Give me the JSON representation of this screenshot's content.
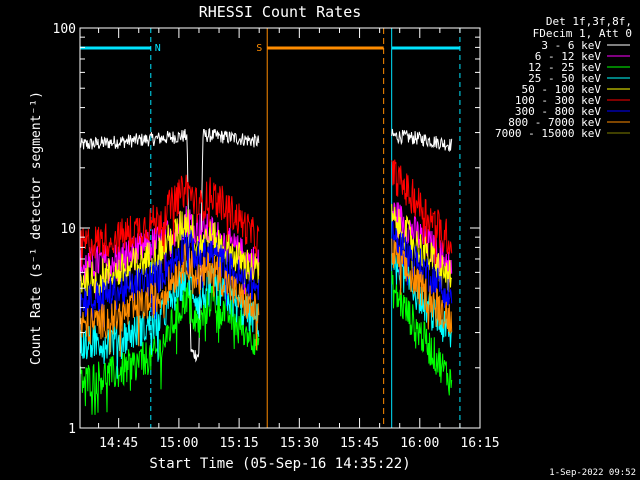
{
  "chart_data": {
    "type": "line",
    "title": "RHESSI Count Rates",
    "xlabel": "Start Time (05-Sep-16 14:35:22)",
    "ylabel": "Count Rate (s⁻¹ detector segment⁻¹)",
    "yscale": "log",
    "ylim": [
      1,
      100
    ],
    "y_ticks": [
      "1",
      "10",
      "100"
    ],
    "x_ticks": [
      "14:45",
      "15:00",
      "15:15",
      "15:30",
      "15:45",
      "16:00",
      "16:15"
    ],
    "xlim": [
      "14:35:22",
      "16:15"
    ],
    "legend_header": [
      "Det 1f,3f,8f,",
      "FDecim 1, Att 0"
    ],
    "legend_placement": "top-right, outside plot",
    "footer": "1-Sep-2022 09:52",
    "grid": false,
    "series": [
      {
        "name": "3 - 6 keV",
        "color": "#ffffff",
        "segments": [
          {
            "t": [
              "14:35:22",
              "14:45",
              "14:55",
              "15:02",
              "15:03",
              "15:05",
              "15:06",
              "15:08",
              "15:15",
              "15:20"
            ],
            "v": [
              26,
              27,
              28,
              29,
              2.4,
              2.3,
              29,
              29,
              28,
              27
            ]
          },
          {
            "t": [
              "15:53",
              "16:00",
              "16:08"
            ],
            "v": [
              29,
              28,
              26
            ]
          }
        ]
      },
      {
        "name": "6 - 12 keV",
        "color": "#ff00ff",
        "segments": [
          {
            "t": [
              "14:35:22",
              "14:45",
              "14:55",
              "15:02",
              "15:05",
              "15:08",
              "15:15",
              "15:20"
            ],
            "v": [
              6.5,
              7,
              8.5,
              11,
              10,
              9.5,
              7.5,
              6.5
            ]
          },
          {
            "t": [
              "15:53",
              "16:00",
              "16:08"
            ],
            "v": [
              12,
              9,
              6.5
            ]
          }
        ]
      },
      {
        "name": "12 - 25 keV",
        "color": "#00ff00",
        "segments": [
          {
            "t": [
              "14:35:22",
              "14:45",
              "14:55",
              "15:02",
              "15:05",
              "15:08",
              "15:15",
              "15:20"
            ],
            "v": [
              1.7,
              1.9,
              2.4,
              4.6,
              3.2,
              4.5,
              3.3,
              2.7
            ]
          },
          {
            "t": [
              "15:53",
              "16:00",
              "16:08"
            ],
            "v": [
              5,
              3,
              1.7
            ]
          }
        ]
      },
      {
        "name": "25 - 50 keV",
        "color": "#00ffff",
        "segments": [
          {
            "t": [
              "14:35:22",
              "14:45",
              "14:55",
              "15:02",
              "15:05",
              "15:08",
              "15:15",
              "15:20"
            ],
            "v": [
              2.6,
              2.8,
              3.4,
              5.8,
              4.2,
              5.3,
              4,
              3.4
            ]
          },
          {
            "t": [
              "15:53",
              "16:00",
              "16:08"
            ],
            "v": [
              7,
              4.5,
              2.8
            ]
          }
        ]
      },
      {
        "name": "50 - 100 keV",
        "color": "#ffff00",
        "segments": [
          {
            "t": [
              "14:35:22",
              "14:45",
              "14:55",
              "15:02",
              "15:05",
              "15:08",
              "15:15",
              "15:20"
            ],
            "v": [
              5.5,
              6,
              7.5,
              11,
              8.5,
              9,
              7,
              6
            ]
          },
          {
            "t": [
              "15:53",
              "16:00",
              "16:08"
            ],
            "v": [
              11,
              8,
              5.5
            ]
          }
        ]
      },
      {
        "name": "100 - 300 keV",
        "color": "#ff0000",
        "segments": [
          {
            "t": [
              "14:35:22",
              "14:45",
              "14:55",
              "15:02",
              "15:05",
              "15:08",
              "15:15",
              "15:20"
            ],
            "v": [
              8.2,
              9,
              11,
              16,
              12.5,
              15,
              11,
              8.5
            ]
          },
          {
            "t": [
              "15:53",
              "16:00",
              "16:08"
            ],
            "v": [
              19,
              13,
              8.5
            ]
          }
        ]
      },
      {
        "name": "300 - 800 keV",
        "color": "#0000ff",
        "segments": [
          {
            "t": [
              "14:35:22",
              "14:45",
              "14:55",
              "15:02",
              "15:05",
              "15:08",
              "15:15",
              "15:20"
            ],
            "v": [
              4.3,
              4.8,
              5.7,
              8.5,
              7,
              7.5,
              5.7,
              4.9
            ]
          },
          {
            "t": [
              "15:53",
              "16:00",
              "16:08"
            ],
            "v": [
              9,
              6.5,
              4.5
            ]
          }
        ]
      },
      {
        "name": "800 - 7000 keV",
        "color": "#ff8c00",
        "segments": [
          {
            "t": [
              "14:35:22",
              "14:45",
              "14:55",
              "15:02",
              "15:05",
              "15:08",
              "15:15",
              "15:20"
            ],
            "v": [
              3.2,
              3.6,
              4.5,
              7,
              5.5,
              6.5,
              4.5,
              3.7
            ]
          },
          {
            "t": [
              "15:53",
              "16:00",
              "16:08"
            ],
            "v": [
              7.5,
              5,
              3.5
            ]
          }
        ]
      },
      {
        "name": "7000 - 15000 keV",
        "color": "#808000",
        "segments": []
      }
    ],
    "spacecraft_state": {
      "night": {
        "label": "N",
        "color": "#00e5ff",
        "intervals": [
          [
            "14:35:22",
            "14:53"
          ],
          [
            "15:53",
            "16:10"
          ]
        ]
      },
      "saa": {
        "label": "S",
        "color": "#ff8c00",
        "intervals": [
          [
            "15:22",
            "15:51"
          ]
        ]
      }
    }
  }
}
